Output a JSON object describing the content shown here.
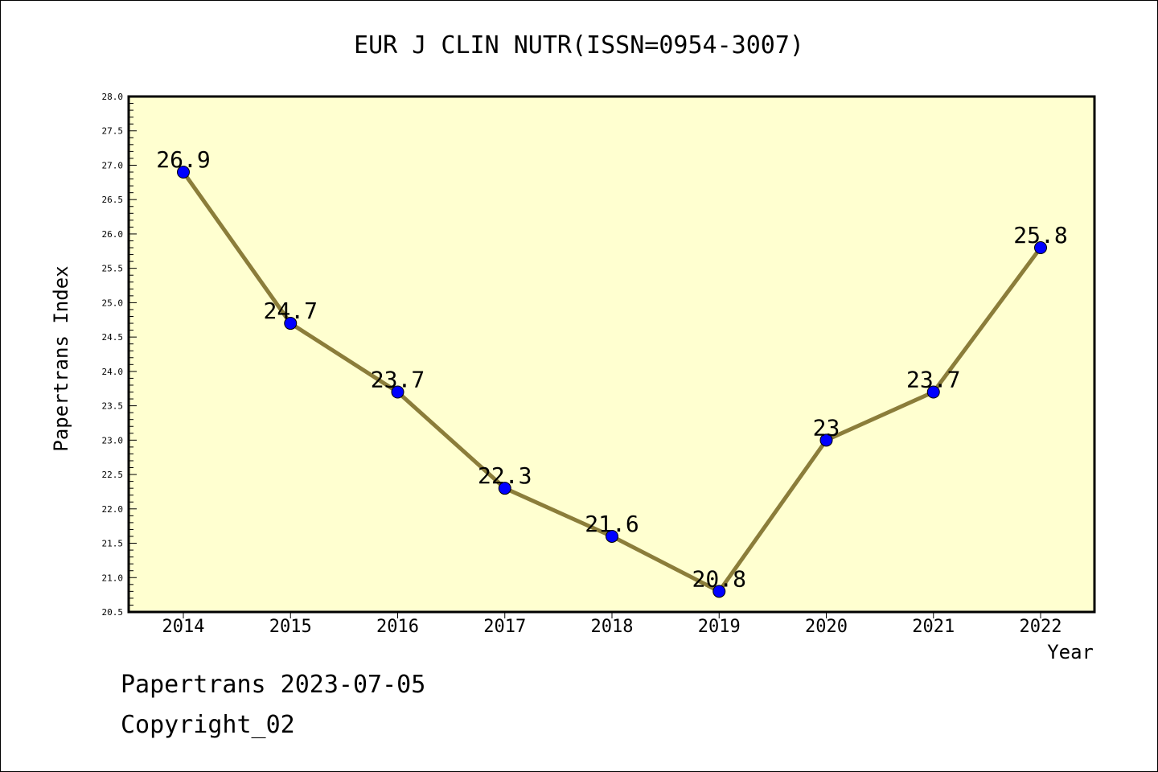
{
  "chart_data": {
    "type": "line",
    "title": "EUR J CLIN NUTR(ISSN=0954-3007)",
    "xlabel": "Year",
    "ylabel": "Papertrans Index",
    "categories": [
      "2014",
      "2015",
      "2016",
      "2017",
      "2018",
      "2019",
      "2020",
      "2021",
      "2022"
    ],
    "values": [
      26.9,
      24.7,
      23.7,
      22.3,
      21.6,
      20.8,
      23.0,
      23.7,
      25.8
    ],
    "data_labels": [
      "26.9",
      "24.7",
      "23.7",
      "22.3",
      "21.6",
      "20.8",
      "23",
      "23.7",
      "25.8"
    ],
    "ylim": [
      20.5,
      28.0
    ],
    "yticks": [
      "20.5",
      "21.0",
      "21.5",
      "22.0",
      "22.5",
      "23.0",
      "23.5",
      "24.0",
      "24.5",
      "25.0",
      "25.5",
      "26.0",
      "26.5",
      "27.0",
      "27.5",
      "28.0"
    ],
    "grid": false,
    "colors": {
      "plot_background": "#ffffd0",
      "line": "#8b7d3a",
      "marker": "#0000ff"
    }
  },
  "footer": {
    "source": "Papertrans 2023-07-05",
    "copyright": "Copyright_02"
  }
}
